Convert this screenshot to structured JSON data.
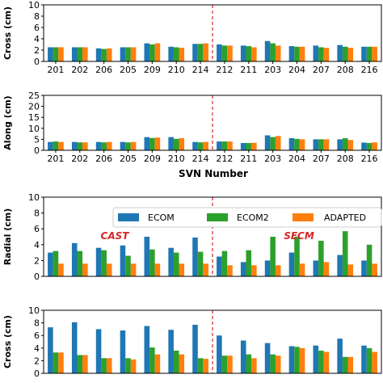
{
  "colors": {
    "ecom": "#1f77b4",
    "ecom2": "#2ca02c",
    "adapted": "#ff7f0e",
    "divider": "#d62728"
  },
  "legend": [
    "ECOM",
    "ECOM2",
    "ADAPTED"
  ],
  "chart_data": [
    {
      "type": "bar",
      "ylabel": "Cross (cm)",
      "ylim": [
        0,
        10
      ],
      "yticks": [
        0,
        2,
        4,
        6,
        8,
        10
      ],
      "categories": [
        "201",
        "202",
        "206",
        "205",
        "209",
        "210",
        "214",
        "212",
        "211",
        "203",
        "204",
        "207",
        "208",
        "216"
      ],
      "series": [
        {
          "values": [
            2.5,
            2.5,
            2.3,
            2.5,
            3.2,
            2.6,
            3.1,
            3.0,
            2.8,
            3.6,
            2.7,
            2.8,
            2.9,
            2.6
          ]
        },
        {
          "values": [
            2.5,
            2.5,
            2.2,
            2.5,
            3.0,
            2.5,
            3.1,
            2.8,
            2.7,
            3.2,
            2.6,
            2.5,
            2.6,
            2.6
          ]
        },
        {
          "values": [
            2.5,
            2.5,
            2.3,
            2.5,
            3.2,
            2.4,
            3.2,
            2.8,
            2.5,
            2.8,
            2.6,
            2.4,
            2.4,
            2.6
          ]
        }
      ],
      "divider_after_index": 6,
      "grid": false
    },
    {
      "type": "bar",
      "ylabel": "Along (cm)",
      "xlabel": "SVN Number",
      "ylim": [
        0,
        25
      ],
      "yticks": [
        0,
        5,
        10,
        15,
        20,
        25
      ],
      "categories": [
        "201",
        "202",
        "206",
        "205",
        "209",
        "210",
        "214",
        "212",
        "211",
        "203",
        "204",
        "207",
        "208",
        "216"
      ],
      "series": [
        {
          "values": [
            3.8,
            3.8,
            3.8,
            3.8,
            6.0,
            6.0,
            3.8,
            4.0,
            3.3,
            6.8,
            5.5,
            5.0,
            5.0,
            3.5
          ]
        },
        {
          "values": [
            4.0,
            3.6,
            3.6,
            3.6,
            5.6,
            5.2,
            3.6,
            4.0,
            3.3,
            6.0,
            5.2,
            5.0,
            5.5,
            3.3
          ]
        },
        {
          "values": [
            3.8,
            3.6,
            3.8,
            3.8,
            5.8,
            5.5,
            3.8,
            4.0,
            3.4,
            6.5,
            5.0,
            5.0,
            4.7,
            3.6
          ]
        }
      ],
      "divider_after_index": 6,
      "grid": false
    },
    {
      "type": "bar",
      "ylabel": "Radial (cm)",
      "ylim": [
        0,
        10
      ],
      "yticks": [
        0,
        2,
        4,
        6,
        8,
        10
      ],
      "annotations": [
        "CAST",
        "SECM"
      ],
      "series": [
        {
          "name": "ECOM",
          "values": [
            3.0,
            4.2,
            3.6,
            3.9,
            5.0,
            3.6,
            4.9,
            2.5,
            1.8,
            2.0,
            3.0,
            2.0,
            2.7,
            2.0
          ]
        },
        {
          "name": "ECOM2",
          "values": [
            3.2,
            3.2,
            3.3,
            2.6,
            3.4,
            3.0,
            3.1,
            3.2,
            3.3,
            5.0,
            5.0,
            4.5,
            5.7,
            4.0
          ]
        },
        {
          "name": "ADAPTED",
          "values": [
            1.6,
            1.6,
            1.6,
            1.6,
            1.6,
            1.6,
            1.6,
            1.4,
            1.4,
            1.4,
            1.6,
            1.8,
            1.5,
            1.6
          ]
        }
      ],
      "divider_after_index": 6,
      "legend_position": "top-right",
      "grid": false
    },
    {
      "type": "bar",
      "ylabel": "Cross (cm)",
      "ylim": [
        0,
        10
      ],
      "yticks": [
        0,
        2,
        4,
        6,
        8,
        10
      ],
      "series": [
        {
          "values": [
            7.3,
            8.1,
            7.0,
            6.8,
            7.5,
            6.9,
            7.7,
            6.0,
            5.2,
            4.8,
            4.3,
            4.4,
            5.5,
            4.4
          ]
        },
        {
          "values": [
            3.3,
            2.9,
            2.4,
            2.4,
            4.1,
            3.6,
            2.4,
            2.8,
            3.0,
            3.0,
            4.2,
            3.6,
            2.6,
            4.0
          ]
        },
        {
          "values": [
            3.3,
            2.9,
            2.4,
            2.2,
            3.0,
            3.0,
            2.3,
            2.8,
            2.4,
            2.8,
            4.0,
            3.4,
            2.6,
            3.4
          ]
        }
      ],
      "divider_after_index": 6,
      "grid": false
    }
  ]
}
